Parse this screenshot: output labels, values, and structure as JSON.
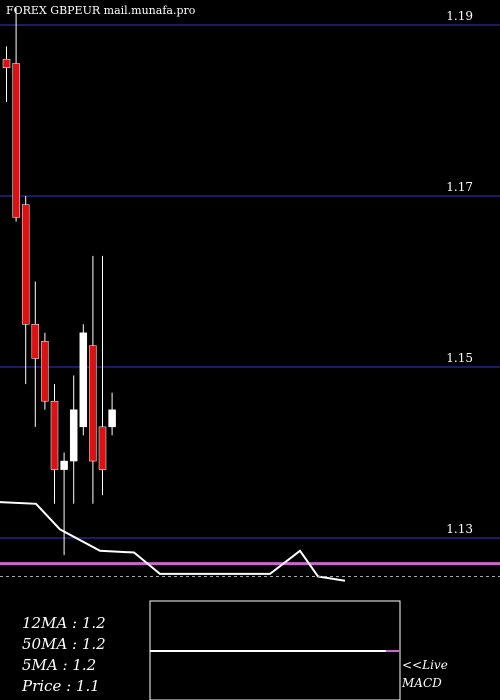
{
  "header": {
    "text": "FOREX  GBPEUR mail.munafa.pro"
  },
  "legend": {
    "ma12": "12MA : 1.2",
    "ma50": "50MA : 1.2",
    "ma5": "5MA : 1.2",
    "price": "Price   : 1.1"
  },
  "macd": {
    "live": "<<Live",
    "label": "MACD"
  },
  "colors": {
    "up": "#ffffff",
    "down": "#dd1111",
    "grid": "#1a1a66",
    "ma_line": "#cc66cc"
  },
  "chart_data": {
    "type": "candlestick",
    "ylim": [
      1.105,
      1.193
    ],
    "yticks": [
      1.19,
      1.17,
      1.15,
      1.13
    ],
    "candles": [
      {
        "o": 1.186,
        "h": 1.1875,
        "l": 1.181,
        "c": 1.185
      },
      {
        "o": 1.1855,
        "h": 1.192,
        "l": 1.167,
        "c": 1.1675
      },
      {
        "o": 1.169,
        "h": 1.17,
        "l": 1.148,
        "c": 1.155
      },
      {
        "o": 1.155,
        "h": 1.16,
        "l": 1.143,
        "c": 1.151
      },
      {
        "o": 1.153,
        "h": 1.154,
        "l": 1.145,
        "c": 1.146
      },
      {
        "o": 1.146,
        "h": 1.148,
        "l": 1.134,
        "c": 1.138
      },
      {
        "o": 1.138,
        "h": 1.14,
        "l": 1.128,
        "c": 1.139
      },
      {
        "o": 1.139,
        "h": 1.149,
        "l": 1.134,
        "c": 1.145
      },
      {
        "o": 1.143,
        "h": 1.155,
        "l": 1.142,
        "c": 1.154
      },
      {
        "o": 1.1525,
        "h": 1.163,
        "l": 1.134,
        "c": 1.139
      },
      {
        "o": 1.143,
        "h": 1.163,
        "l": 1.135,
        "c": 1.138
      },
      {
        "o": 1.143,
        "h": 1.147,
        "l": 1.142,
        "c": 1.145
      }
    ],
    "ma_price_line": 1.127,
    "white_line": [
      [
        0,
        1.1342
      ],
      [
        36,
        1.134
      ],
      [
        60,
        1.131
      ],
      [
        100,
        1.1285
      ],
      [
        134,
        1.1283
      ],
      [
        160,
        1.1258
      ],
      [
        270,
        1.1258
      ],
      [
        300,
        1.1285
      ],
      [
        318,
        1.1255
      ],
      [
        345,
        1.125
      ]
    ],
    "macd_box_y": 1.1229
  }
}
